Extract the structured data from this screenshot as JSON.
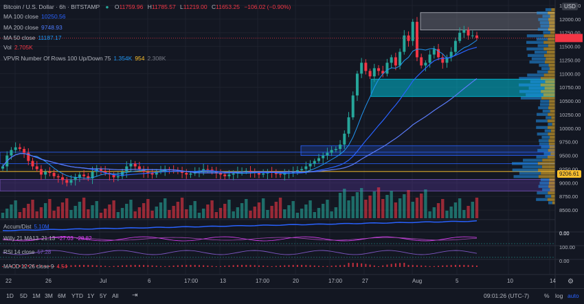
{
  "header": {
    "symbol": "Bitcoin / U.S. Dollar · 6h · BITSTAMP",
    "o_label": "O",
    "o": "11759.96",
    "h_label": "H",
    "h": "11785.57",
    "l_label": "L",
    "l": "11219.00",
    "c_label": "C",
    "c": "11653.25",
    "change": "−106.02 (−0.90%)"
  },
  "legend": [
    {
      "label": "MA 100 close",
      "value": "10250.56",
      "color": "#2962ff"
    },
    {
      "label": "MA 200 close",
      "value": "9748.93",
      "color": "#2962ff"
    },
    {
      "label": "MA 50 close",
      "value": "11187.17",
      "color": "#2196f3"
    },
    {
      "label": "Vol",
      "value": "2.705K",
      "color": "#f23645"
    }
  ],
  "vpvr": {
    "label": "VPVR Number Of Rows 100 Up/Down 75",
    "up": "1.354K",
    "down": "954",
    "total": "2.308K"
  },
  "panes": {
    "accum": {
      "label": "Accum/Dist",
      "value": "5.10M"
    },
    "willy": {
      "label": "Willy 21 MA13",
      "v1": "21.13",
      "v2": "-27.03",
      "v3": "-28.82"
    },
    "rsi": {
      "label": "RSI 14 close",
      "value": "57.28"
    },
    "macd": {
      "label": "MACD 12 26 close 9",
      "value": "4.54"
    }
  },
  "price_axis": {
    "currency": "USD",
    "ticks": [
      "12250.00",
      "12000.00",
      "11750.00",
      "11500.00",
      "11250.00",
      "11000.00",
      "10750.00",
      "10500.00",
      "10250.00",
      "10000.00",
      "9750.00",
      "9500.00",
      "9250.00",
      "9000.00",
      "8750.00",
      "8500.00"
    ],
    "highlight": "9206.61",
    "pane_ticks": [
      "0.00",
      "0.00",
      "100.00",
      "0.00"
    ]
  },
  "time_axis": [
    "22",
    "26",
    "Jul",
    "6",
    "17:00",
    "13",
    "17:00",
    "20",
    "17:00",
    "27",
    "Aug",
    "5",
    "10",
    "14"
  ],
  "bottom_bar": {
    "timeframes": [
      "1D",
      "5D",
      "1M",
      "3M",
      "6M",
      "YTD",
      "1Y",
      "5Y",
      "All"
    ],
    "clock": "09:01:26 (UTC-7)",
    "percent": "%",
    "log": "log",
    "auto": "auto"
  },
  "colors": {
    "up": "#26a69a",
    "down": "#f23645",
    "bg": "#131722",
    "ma100": "#2962ff",
    "ma200": "#2962ff",
    "ma50": "#2196f3"
  },
  "chart_data": {
    "type": "candlestick",
    "title": "Bitcoin / U.S. Dollar · 6h · BITSTAMP",
    "ylim": [
      8350,
      12350
    ],
    "price_levels_shown": [
      12250,
      12000,
      11750,
      11500,
      11250,
      11000,
      10750,
      10500,
      10250,
      10000,
      9750,
      9500,
      9250,
      9000,
      8750,
      8500
    ],
    "last_price": 11653.25,
    "highlighted_price": 9206.61,
    "ma_last": {
      "MA 100": 10250.56,
      "MA 200": 9748.93,
      "MA 50": 11187.17
    },
    "volume_last": "2.705K",
    "vpvr": {
      "up": "1.354K",
      "down": "954",
      "total": "2.308K"
    },
    "zones": [
      {
        "from": 11800,
        "to": 12120,
        "color": "gray"
      },
      {
        "from": 10580,
        "to": 10900,
        "color": "teal"
      },
      {
        "from": 9500,
        "to": 9680,
        "color": "blue"
      },
      {
        "from": 8850,
        "to": 9060,
        "color": "purple"
      }
    ],
    "close_series_approx": [
      9300,
      9500,
      9600,
      9650,
      9620,
      9550,
      9400,
      9300,
      9250,
      9150,
      9200,
      9180,
      9120,
      9100,
      9050,
      9000,
      9050,
      9100,
      9150,
      9120,
      9080,
      9200,
      9250,
      9220,
      9180,
      9150,
      9100,
      9120,
      9200,
      9300,
      9350,
      9300,
      9250,
      9200,
      9180,
      9150,
      9200,
      9220,
      9250,
      9240,
      9230,
      9200,
      9180,
      9150,
      9170,
      9200,
      9220,
      9250,
      9240,
      9200,
      9180,
      9150,
      9120,
      9150,
      9170,
      9200,
      9210,
      9220,
      9200,
      9180,
      9150,
      9170,
      9200,
      9180,
      9160,
      9150,
      9170,
      9180,
      9200,
      9230,
      9250,
      9300,
      9350,
      9400,
      9450,
      9500,
      9550,
      9600,
      9620,
      9700,
      9900,
      10200,
      10600,
      11000,
      11200,
      11050,
      10950,
      11100,
      11050,
      11000,
      11200,
      11300,
      11150,
      11400,
      11700,
      11600,
      11950,
      11300,
      11150,
      11200,
      11350,
      11450,
      11300,
      11200,
      11300,
      11400,
      11600,
      11750,
      11800,
      11700,
      11700,
      11653
    ]
  }
}
